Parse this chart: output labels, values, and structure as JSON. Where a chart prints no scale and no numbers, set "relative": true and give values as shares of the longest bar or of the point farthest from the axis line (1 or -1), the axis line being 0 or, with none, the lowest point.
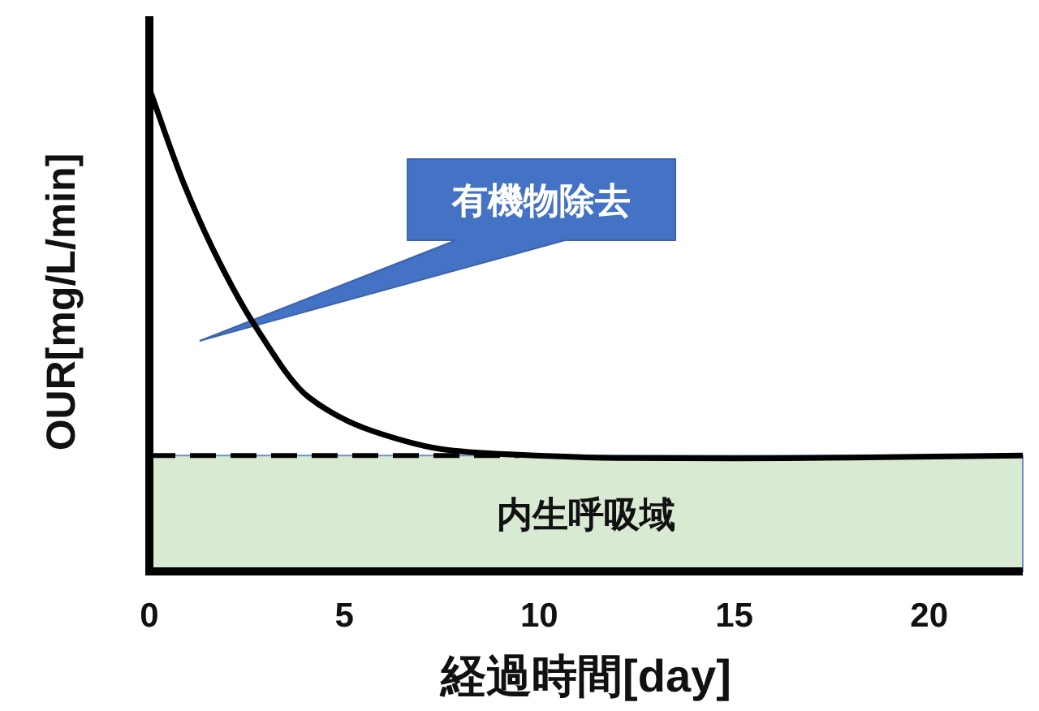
{
  "chart_data": {
    "type": "line",
    "relative": true,
    "xlabel": "経過時間[day]",
    "ylabel": "OUR[mg/L/min]",
    "xlim": [
      0,
      22.4
    ],
    "xticks": [
      0,
      5,
      10,
      15,
      20
    ],
    "series": [
      {
        "color": "#000000",
        "x": [
          0,
          0.9,
          1.8,
          2.7,
          4.1,
          5.75,
          7.8,
          9.9,
          12,
          15,
          18,
          22.4
        ],
        "values": [
          1,
          0.8,
          0.64,
          0.51,
          0.36,
          0.29,
          0.25,
          0.24,
          0.235,
          0.234,
          0.236,
          0.24
        ]
      },
      {
        "color": "#000000",
        "line_style": "dashed",
        "x": [
          0,
          9.5
        ],
        "values": [
          0.24,
          0.24
        ]
      }
    ],
    "bands": [
      {
        "axis": "y",
        "from": 0,
        "to": 0.24,
        "label": "内生呼吸域",
        "color": "#d9ead3"
      }
    ],
    "annotations": [
      "有機物除去"
    ]
  }
}
